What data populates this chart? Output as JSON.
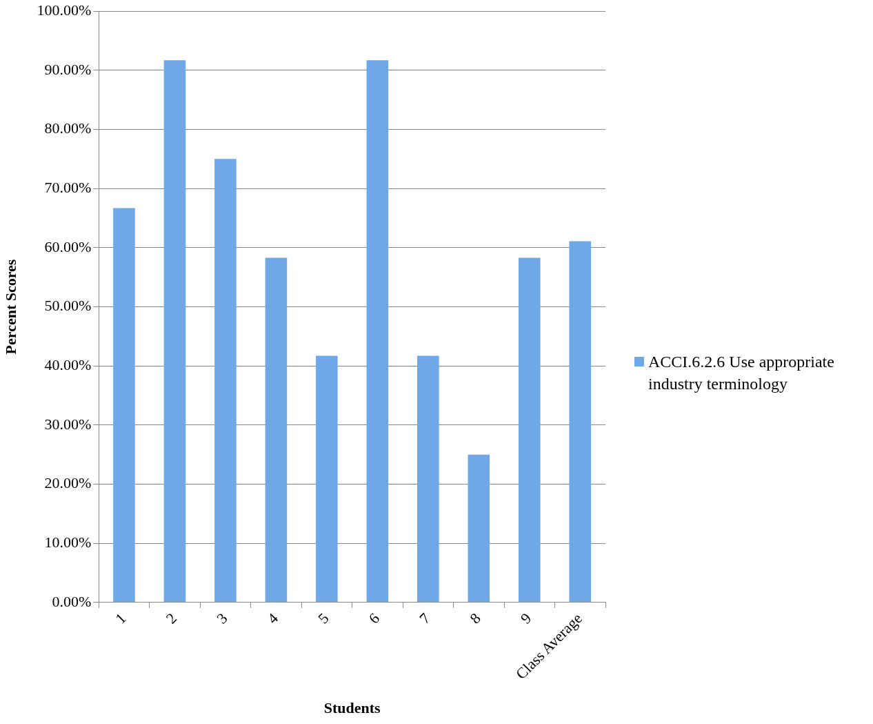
{
  "chart_data": {
    "type": "bar",
    "xlabel": "Students",
    "ylabel": "Percent Scores",
    "categories": [
      "1",
      "2",
      "3",
      "4",
      "5",
      "6",
      "7",
      "8",
      "9",
      "Class Average"
    ],
    "series": [
      {
        "name": "ACCI.6.2.6 Use appropriate industry terminology",
        "color": "#6fa8e6",
        "values": [
          66.7,
          91.7,
          75,
          58.3,
          41.7,
          91.7,
          41.7,
          25,
          58.3,
          61.1
        ]
      }
    ],
    "ylim": [
      0,
      100
    ],
    "yticks": [
      {
        "value": 0,
        "label": "0.00%"
      },
      {
        "value": 10,
        "label": "10.00%"
      },
      {
        "value": 20,
        "label": "20.00%"
      },
      {
        "value": 30,
        "label": "30.00%"
      },
      {
        "value": 40,
        "label": "40.00%"
      },
      {
        "value": 50,
        "label": "50.00%"
      },
      {
        "value": 60,
        "label": "60.00%"
      },
      {
        "value": 70,
        "label": "70.00%"
      },
      {
        "value": 80,
        "label": "80.00%"
      },
      {
        "value": 90,
        "label": "90.00%"
      },
      {
        "value": 100,
        "label": "100.00%"
      }
    ],
    "grid": "y",
    "legend": "right"
  }
}
